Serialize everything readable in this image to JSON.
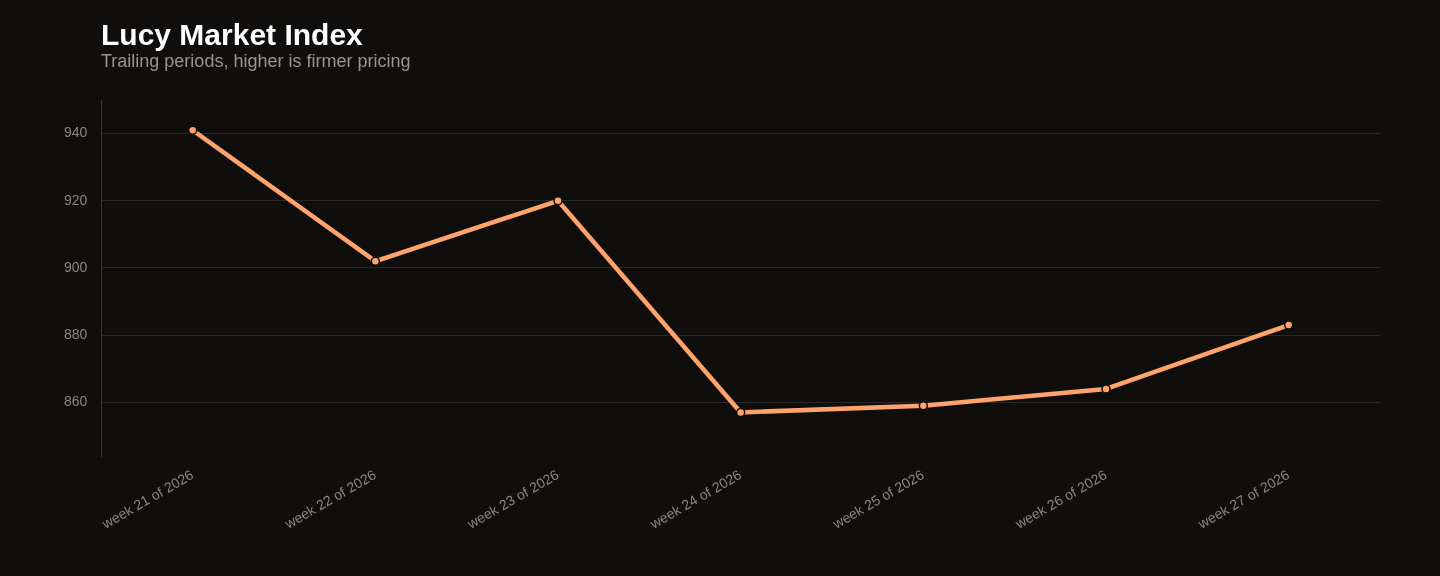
{
  "chart_data": {
    "type": "line",
    "title": "Lucy Market Index",
    "subtitle": "Trailing periods, higher is firmer pricing",
    "categories": [
      "week 21 of 2026",
      "week 22 of 2026",
      "week 23 of 2026",
      "week 24 of 2026",
      "week 25 of 2026",
      "week 26 of 2026",
      "week 27 of 2026"
    ],
    "series": [
      {
        "color": "#ffa36c",
        "values": [
          941,
          902,
          920,
          857,
          859,
          864,
          883
        ]
      }
    ],
    "ylim": [
      844,
      950
    ],
    "yticks": [
      860,
      880,
      900,
      920,
      940
    ],
    "grid": "y",
    "marker": "circle",
    "line_style": "solid",
    "legend": false
  }
}
